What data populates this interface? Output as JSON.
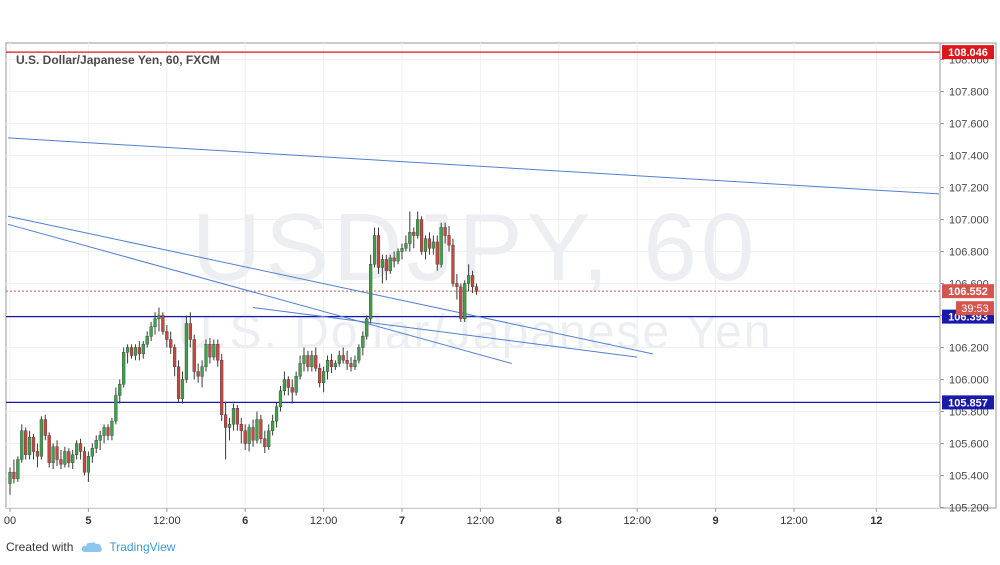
{
  "header": {
    "title": "U.S. Dollar/Japanese Yen, 60, FXCM"
  },
  "watermark": {
    "symbol": "USDJPY, 60",
    "name": "U.S. Dollar/Japanese Yen"
  },
  "footer": {
    "created_with": "Created with",
    "brand": "TradingView"
  },
  "colors": {
    "up": "#3fa14a",
    "down": "#c8473f",
    "trendline": "#4f7fd1",
    "resistance": "#e0151b",
    "support": "#1a1aa8",
    "price_tag": "#d45450"
  },
  "chart_data": {
    "type": "candlestick",
    "ylim": [
      105.2,
      108.1
    ],
    "y_ticks": [
      "108.000",
      "107.800",
      "107.600",
      "107.400",
      "107.200",
      "107.000",
      "106.800",
      "106.600",
      "106.400",
      "106.200",
      "106.000",
      "105.800",
      "105.600",
      "105.400",
      "105.200"
    ],
    "x_ticks": [
      {
        "label": "00",
        "index": 0
      },
      {
        "label": "5",
        "index": 20
      },
      {
        "label": "12:00",
        "index": 40
      },
      {
        "label": "6",
        "index": 60
      },
      {
        "label": "12:00",
        "index": 80
      },
      {
        "label": "7",
        "index": 100
      },
      {
        "label": "12:00",
        "index": 120
      },
      {
        "label": "8",
        "index": 140
      },
      {
        "label": "12:00",
        "index": 160
      },
      {
        "label": "9",
        "index": 180
      },
      {
        "label": "12:00",
        "index": 200
      },
      {
        "label": "12",
        "index": 221
      }
    ],
    "levels": [
      {
        "name": "resistance",
        "value": 108.046,
        "label": "108.046"
      },
      {
        "name": "support-1",
        "value": 106.393,
        "label": "106.393"
      },
      {
        "name": "support-2",
        "value": 105.857,
        "label": "105.857"
      }
    ],
    "last_price": {
      "value": 106.552,
      "label": "106.552",
      "countdown": "39:53"
    },
    "trendlines": [
      {
        "from": [
          -0.5,
          107.51
        ],
        "to": [
          237,
          107.16
        ]
      },
      {
        "from": [
          -0.5,
          107.02
        ],
        "to": [
          164,
          106.16
        ]
      },
      {
        "from": [
          -0.5,
          106.97
        ],
        "to": [
          128,
          106.1
        ]
      },
      {
        "from": [
          62,
          106.45
        ],
        "to": [
          160,
          106.14
        ]
      }
    ],
    "candles": [
      [
        105.35,
        105.45,
        105.28,
        105.42
      ],
      [
        105.42,
        105.5,
        105.35,
        105.38
      ],
      [
        105.38,
        105.52,
        105.36,
        105.5
      ],
      [
        105.5,
        105.72,
        105.48,
        105.68
      ],
      [
        105.68,
        105.7,
        105.5,
        105.53
      ],
      [
        105.53,
        105.68,
        105.5,
        105.64
      ],
      [
        105.64,
        105.66,
        105.5,
        105.55
      ],
      [
        105.55,
        105.6,
        105.45,
        105.52
      ],
      [
        105.52,
        105.77,
        105.5,
        105.75
      ],
      [
        105.75,
        105.78,
        105.62,
        105.65
      ],
      [
        105.65,
        105.67,
        105.45,
        105.48
      ],
      [
        105.48,
        105.6,
        105.44,
        105.58
      ],
      [
        105.58,
        105.62,
        105.46,
        105.5
      ],
      [
        105.5,
        105.56,
        105.44,
        105.47
      ],
      [
        105.47,
        105.58,
        105.45,
        105.55
      ],
      [
        105.55,
        105.57,
        105.45,
        105.48
      ],
      [
        105.48,
        105.56,
        105.44,
        105.53
      ],
      [
        105.53,
        105.62,
        105.5,
        105.6
      ],
      [
        105.6,
        105.63,
        105.5,
        105.55
      ],
      [
        105.55,
        105.58,
        105.4,
        105.42
      ],
      [
        105.42,
        105.55,
        105.36,
        105.52
      ],
      [
        105.52,
        105.6,
        105.48,
        105.57
      ],
      [
        105.57,
        105.65,
        105.54,
        105.62
      ],
      [
        105.62,
        105.68,
        105.56,
        105.65
      ],
      [
        105.65,
        105.72,
        105.6,
        105.7
      ],
      [
        105.7,
        105.72,
        105.62,
        105.65
      ],
      [
        105.65,
        105.76,
        105.62,
        105.74
      ],
      [
        105.74,
        105.95,
        105.72,
        105.9
      ],
      [
        105.9,
        106.0,
        105.85,
        105.97
      ],
      [
        105.97,
        106.2,
        105.95,
        106.17
      ],
      [
        106.17,
        106.22,
        106.1,
        106.2
      ],
      [
        106.2,
        106.22,
        106.13,
        106.15
      ],
      [
        106.15,
        106.22,
        106.12,
        106.2
      ],
      [
        106.2,
        106.24,
        106.12,
        106.16
      ],
      [
        106.16,
        106.24,
        106.13,
        106.22
      ],
      [
        106.22,
        106.3,
        106.2,
        106.27
      ],
      [
        106.27,
        106.36,
        106.24,
        106.33
      ],
      [
        106.33,
        106.42,
        106.28,
        106.38
      ],
      [
        106.38,
        106.45,
        106.3,
        106.4
      ],
      [
        106.4,
        106.42,
        106.28,
        106.3
      ],
      [
        106.3,
        106.34,
        106.2,
        106.25
      ],
      [
        106.25,
        106.3,
        106.16,
        106.2
      ],
      [
        106.2,
        106.22,
        106.02,
        106.08
      ],
      [
        106.08,
        106.12,
        105.86,
        105.88
      ],
      [
        105.88,
        106.05,
        105.85,
        106.0
      ],
      [
        106.0,
        106.4,
        105.98,
        106.35
      ],
      [
        106.35,
        106.42,
        106.2,
        106.25
      ],
      [
        106.25,
        106.28,
        106.0,
        106.05
      ],
      [
        106.05,
        106.1,
        105.98,
        106.02
      ],
      [
        106.02,
        106.12,
        105.95,
        106.08
      ],
      [
        106.08,
        106.25,
        106.05,
        106.22
      ],
      [
        106.22,
        106.26,
        106.1,
        106.14
      ],
      [
        106.14,
        106.25,
        106.12,
        106.22
      ],
      [
        106.22,
        106.25,
        106.08,
        106.12
      ],
      [
        106.12,
        106.16,
        105.74,
        105.78
      ],
      [
        105.78,
        105.86,
        105.5,
        105.7
      ],
      [
        105.7,
        105.76,
        105.62,
        105.72
      ],
      [
        105.72,
        105.85,
        105.68,
        105.82
      ],
      [
        105.82,
        105.84,
        105.68,
        105.72
      ],
      [
        105.72,
        105.76,
        105.6,
        105.68
      ],
      [
        105.68,
        105.72,
        105.56,
        105.6
      ],
      [
        105.6,
        105.72,
        105.55,
        105.7
      ],
      [
        105.7,
        105.75,
        105.58,
        105.62
      ],
      [
        105.62,
        105.8,
        105.6,
        105.75
      ],
      [
        105.75,
        105.78,
        105.6,
        105.63
      ],
      [
        105.63,
        105.68,
        105.54,
        105.58
      ],
      [
        105.58,
        105.72,
        105.56,
        105.68
      ],
      [
        105.68,
        105.78,
        105.65,
        105.74
      ],
      [
        105.74,
        105.86,
        105.7,
        105.83
      ],
      [
        105.83,
        105.96,
        105.8,
        105.93
      ],
      [
        105.93,
        106.05,
        105.9,
        106.0
      ],
      [
        106.0,
        106.02,
        105.9,
        105.95
      ],
      [
        105.95,
        106.0,
        105.85,
        105.92
      ],
      [
        105.92,
        106.05,
        105.9,
        106.02
      ],
      [
        106.02,
        106.15,
        106.0,
        106.1
      ],
      [
        106.1,
        106.2,
        106.05,
        106.15
      ],
      [
        106.15,
        106.18,
        106.05,
        106.08
      ],
      [
        106.08,
        106.18,
        106.05,
        106.15
      ],
      [
        106.15,
        106.2,
        106.05,
        106.07
      ],
      [
        106.07,
        106.1,
        105.95,
        105.98
      ],
      [
        105.98,
        106.08,
        105.92,
        106.05
      ],
      [
        106.05,
        106.15,
        106.0,
        106.12
      ],
      [
        106.12,
        106.16,
        106.04,
        106.08
      ],
      [
        106.08,
        106.12,
        106.06,
        106.1
      ],
      [
        106.1,
        106.18,
        106.08,
        106.15
      ],
      [
        106.15,
        106.2,
        106.1,
        106.12
      ],
      [
        106.12,
        106.18,
        106.06,
        106.1
      ],
      [
        106.1,
        106.14,
        106.05,
        106.08
      ],
      [
        106.08,
        106.15,
        106.06,
        106.12
      ],
      [
        106.12,
        106.22,
        106.1,
        106.2
      ],
      [
        106.2,
        106.3,
        106.15,
        106.27
      ],
      [
        106.27,
        106.4,
        106.25,
        106.38
      ],
      [
        106.38,
        106.78,
        106.35,
        106.72
      ],
      [
        106.72,
        106.95,
        106.7,
        106.9
      ],
      [
        106.9,
        106.95,
        106.66,
        106.7
      ],
      [
        106.7,
        106.78,
        106.6,
        106.75
      ],
      [
        106.75,
        106.78,
        106.62,
        106.68
      ],
      [
        106.68,
        106.78,
        106.66,
        106.76
      ],
      [
        106.76,
        106.8,
        106.7,
        106.74
      ],
      [
        106.74,
        106.82,
        106.72,
        106.8
      ],
      [
        106.8,
        106.85,
        106.75,
        106.82
      ],
      [
        106.82,
        106.9,
        106.8,
        106.85
      ],
      [
        106.85,
        107.05,
        106.8,
        106.92
      ],
      [
        106.92,
        106.95,
        106.82,
        106.9
      ],
      [
        106.9,
        107.05,
        106.88,
        107.0
      ],
      [
        107.0,
        107.02,
        106.78,
        106.8
      ],
      [
        106.8,
        106.9,
        106.75,
        106.88
      ],
      [
        106.88,
        106.92,
        106.78,
        106.82
      ],
      [
        106.82,
        106.9,
        106.78,
        106.86
      ],
      [
        106.86,
        106.9,
        106.68,
        106.72
      ],
      [
        106.72,
        106.98,
        106.7,
        106.95
      ],
      [
        106.95,
        106.98,
        106.85,
        106.9
      ],
      [
        106.9,
        106.96,
        106.8,
        106.84
      ],
      [
        106.84,
        106.88,
        106.58,
        106.6
      ],
      [
        106.6,
        106.66,
        106.5,
        106.58
      ],
      [
        106.58,
        106.6,
        106.36,
        106.38
      ],
      [
        106.38,
        106.62,
        106.36,
        106.6
      ],
      [
        106.6,
        106.72,
        106.55,
        106.65
      ],
      [
        106.65,
        106.68,
        106.54,
        106.58
      ],
      [
        106.58,
        106.6,
        106.53,
        106.552
      ]
    ]
  }
}
